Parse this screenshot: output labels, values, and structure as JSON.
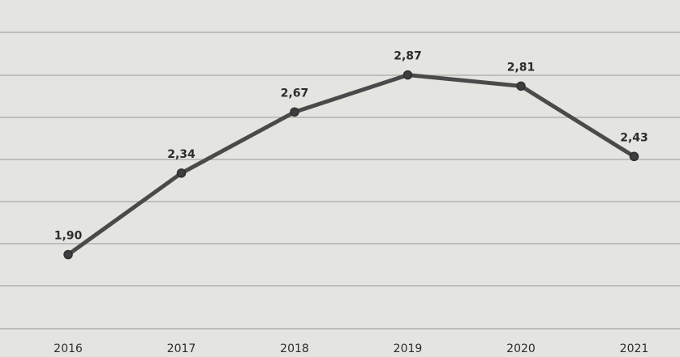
{
  "chart_data": {
    "type": "line",
    "title": "",
    "xlabel": "",
    "ylabel": "",
    "categories": [
      "2016",
      "2017",
      "2018",
      "2019",
      "2020",
      "2021"
    ],
    "series": [
      {
        "values": [
          1.9,
          2.34,
          2.67,
          2.87,
          2.81,
          2.43
        ],
        "labels": [
          "1,90",
          "2,34",
          "2,67",
          "2,87",
          "2,81",
          "2,43"
        ],
        "color": "#4a4a4a"
      }
    ],
    "ylim": [
      1.5,
      3.1
    ],
    "grid": true,
    "legend": "none"
  },
  "colors": {
    "background": "#e4e4e0",
    "grid": "#a6a6a2",
    "line": "#4a4a4a",
    "text": "#2c2c2c"
  }
}
